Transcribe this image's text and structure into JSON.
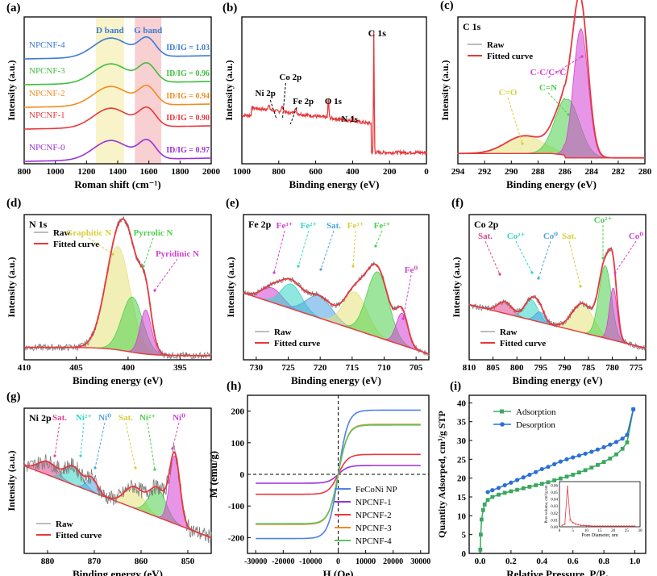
{
  "colors": {
    "raw": "#7a7a7a",
    "fit": "#e8383d",
    "yellow": "#e8e27a",
    "green": "#4ccf4c",
    "cyan": "#33d6c6",
    "blue": "#4ea3e0",
    "magenta": "#d440d4",
    "pink": "#e0458f",
    "orange": "#f28c1f",
    "purple": "#9b30d9",
    "navy": "#3a7bd5"
  },
  "chart_data": [
    {
      "panel_label": "(a)",
      "type": "line",
      "title": "",
      "xlabel": "Roman shift (cm⁻¹)",
      "ylabel": "Intensity (a.u.)",
      "xlim": [
        800,
        2000
      ],
      "xticks": [
        "800",
        "1000",
        "1200",
        "1400",
        "1600",
        "1800",
        "2000"
      ],
      "band_labels": [
        "D band",
        "G band"
      ],
      "band_ranges": [
        [
          1260,
          1440
        ],
        [
          1510,
          1680
        ]
      ],
      "series": [
        {
          "name": "NPCNF-4",
          "ratio": "ID/IG = 1.03",
          "color": "#3a7bd5",
          "d_peak": 1355,
          "g_peak": 1590
        },
        {
          "name": "NPCNF-3",
          "ratio": "ID/IG = 0.96",
          "color": "#3fbf3f",
          "d_peak": 1355,
          "g_peak": 1590
        },
        {
          "name": "NPCNF-2",
          "ratio": "ID/IG = 0.94",
          "color": "#f28c1f",
          "d_peak": 1355,
          "g_peak": 1590
        },
        {
          "name": "NPCNF-1",
          "ratio": "ID/IG = 0.90",
          "color": "#e8383d",
          "d_peak": 1355,
          "g_peak": 1590
        },
        {
          "name": "NPCNF-0",
          "ratio": "ID/IG = 0.97",
          "color": "#9b30d9",
          "d_peak": 1355,
          "g_peak": 1590
        }
      ]
    },
    {
      "panel_label": "(b)",
      "type": "line",
      "xlabel": "Binding energy (eV)",
      "ylabel": "Intensity (a.u.)",
      "xlim": [
        1000,
        0
      ],
      "xticks": [
        "1000",
        "800",
        "600",
        "400",
        "200",
        "0"
      ],
      "annotations": [
        "C 1s",
        "O 1s",
        "N 1s",
        "Co 2p",
        "Fe 2p",
        "Ni 2p"
      ],
      "peaks_eV": {
        "C 1s": 285,
        "O 1s": 531,
        "N 1s": 399,
        "Co 2p": 780,
        "Fe 2p": 711,
        "Ni 2p": 855
      }
    },
    {
      "panel_label": "(c)",
      "type": "line",
      "title": "C 1s",
      "xlabel": "Binding energy (eV)",
      "ylabel": "Intensity (a.u.)",
      "xlim": [
        294,
        280
      ],
      "xticks": [
        "294",
        "292",
        "290",
        "288",
        "286",
        "284",
        "282",
        "280"
      ],
      "legend": [
        "Raw",
        "Fitted curve"
      ],
      "components": [
        {
          "name": "C=O",
          "center": 289.0,
          "height": 0.12,
          "width": 1.4,
          "color": "#e8e27a"
        },
        {
          "name": "C=N",
          "center": 285.8,
          "height": 0.4,
          "width": 0.9,
          "color": "#4ccf4c"
        },
        {
          "name": "C-C/C=C",
          "center": 284.8,
          "height": 0.88,
          "width": 0.55,
          "color": "#d440d4"
        }
      ]
    },
    {
      "panel_label": "(d)",
      "type": "line",
      "title": "N 1s",
      "xlabel": "Binding energy (eV)",
      "ylabel": "Intensity (a.u.)",
      "xlim": [
        410,
        392
      ],
      "xticks": [
        "410",
        "405",
        "400",
        "395"
      ],
      "legend": [
        "Raw",
        "Fitted curve"
      ],
      "components": [
        {
          "name": "Graphitic N",
          "center": 401.0,
          "height": 0.75,
          "width": 1.2,
          "color": "#e8e27a"
        },
        {
          "name": "Pyrrolic N",
          "center": 399.6,
          "height": 0.4,
          "width": 1.0,
          "color": "#4ccf4c"
        },
        {
          "name": "Pyridinic N",
          "center": 398.3,
          "height": 0.32,
          "width": 0.55,
          "color": "#d440d4"
        }
      ]
    },
    {
      "panel_label": "(e)",
      "type": "line",
      "title": "Fe 2p",
      "xlabel": "Binding energy (eV)",
      "ylabel": "Intensity (a.u.)",
      "xlim": [
        732,
        703
      ],
      "xticks": [
        "730",
        "725",
        "720",
        "715",
        "710",
        "705"
      ],
      "legend": [
        "Raw",
        "Fitted curve"
      ],
      "peak_labels": [
        "Fe³⁺",
        "Fe²⁺",
        "Sat.",
        "Fe³⁺",
        "Fe²⁺",
        "Fe⁰"
      ],
      "components": [
        {
          "name": "Fe3+ (2p1/2)",
          "center": 727.5,
          "height": 0.1,
          "width": 1.6,
          "color": "#d440d4"
        },
        {
          "name": "Fe2+ (2p1/2)",
          "center": 724.5,
          "height": 0.17,
          "width": 1.6,
          "color": "#33d6c6"
        },
        {
          "name": "Sat.",
          "center": 720.2,
          "height": 0.15,
          "width": 2.0,
          "color": "#4ea3e0"
        },
        {
          "name": "Fe3+ (2p3/2)",
          "center": 714.5,
          "height": 0.26,
          "width": 1.8,
          "color": "#e8e27a"
        },
        {
          "name": "Fe2+ (2p3/2)",
          "center": 711.0,
          "height": 0.45,
          "width": 1.7,
          "color": "#4ccf4c"
        },
        {
          "name": "Fe0",
          "center": 707.2,
          "height": 0.22,
          "width": 0.9,
          "color": "#d440d4"
        }
      ]
    },
    {
      "panel_label": "(f)",
      "type": "line",
      "title": "Co 2p",
      "xlabel": "Binding energy (eV)",
      "ylabel": "Intensity (a.u.)",
      "xlim": [
        810,
        773
      ],
      "xticks": [
        "810",
        "805",
        "800",
        "795",
        "790",
        "785",
        "780",
        "775"
      ],
      "legend": [
        "Raw",
        "Fitted curve"
      ],
      "peak_labels": [
        "Sat.",
        "Co²⁺",
        "Co⁰",
        "Sat.",
        "Co²⁺",
        "Co⁰"
      ],
      "components": [
        {
          "name": "Sat. (2p1/2)",
          "center": 802.5,
          "height": 0.08,
          "width": 1.5,
          "color": "#e0458f"
        },
        {
          "name": "Co2+ (2p1/2)",
          "center": 797.0,
          "height": 0.14,
          "width": 1.4,
          "color": "#33d6c6"
        },
        {
          "name": "Co0 (2p1/2)",
          "center": 795.2,
          "height": 0.07,
          "width": 1.0,
          "color": "#4ea3e0"
        },
        {
          "name": "Sat. (2p3/2)",
          "center": 786.2,
          "height": 0.2,
          "width": 2.2,
          "color": "#e8e27a"
        },
        {
          "name": "Co2+ (2p3/2)",
          "center": 781.5,
          "height": 0.5,
          "width": 1.3,
          "color": "#4ccf4c"
        },
        {
          "name": "Co0 (2p3/2)",
          "center": 779.8,
          "height": 0.36,
          "width": 0.8,
          "color": "#d440d4"
        }
      ]
    },
    {
      "panel_label": "(g)",
      "type": "line",
      "title": "Ni 2p",
      "xlabel": "Binding energy (eV)",
      "ylabel": "Intensity (a.u.)",
      "xlim": [
        885,
        845
      ],
      "xticks": [
        "880",
        "870",
        "860",
        "850"
      ],
      "legend": [
        "Raw",
        "Fitted curve"
      ],
      "peak_labels": [
        "Sat.",
        "Ni²⁺",
        "Ni⁰",
        "Sat.",
        "Ni²⁺",
        "Ni⁰"
      ],
      "components": [
        {
          "name": "Sat. (2p1/2)",
          "center": 880.0,
          "height": 0.1,
          "width": 2.0,
          "color": "#e0458f"
        },
        {
          "name": "Ni2+ (2p1/2)",
          "center": 874.5,
          "height": 0.14,
          "width": 1.8,
          "color": "#33d6c6"
        },
        {
          "name": "Ni0 (2p1/2)",
          "center": 870.5,
          "height": 0.1,
          "width": 1.2,
          "color": "#4ea3e0"
        },
        {
          "name": "Sat. (2p3/2)",
          "center": 861.5,
          "height": 0.16,
          "width": 2.0,
          "color": "#e8e27a"
        },
        {
          "name": "Ni2+ (2p3/2)",
          "center": 856.5,
          "height": 0.22,
          "width": 1.8,
          "color": "#4ccf4c"
        },
        {
          "name": "Ni0 (2p3/2)",
          "center": 852.8,
          "height": 0.52,
          "width": 1.1,
          "color": "#d440d4"
        }
      ]
    },
    {
      "panel_label": "(h)",
      "type": "line",
      "xlabel": "H (Oe)",
      "ylabel": "M (emu/g)",
      "xlim": [
        -33000,
        33000
      ],
      "ylim": [
        -250,
        250
      ],
      "xticks": [
        "-30000",
        "-20000",
        "-10000",
        "0",
        "10000",
        "20000",
        "30000"
      ],
      "yticks": [
        "-200",
        "-100",
        "0",
        "100",
        "200"
      ],
      "series": [
        {
          "name": "FeCoNi NP",
          "color": "#4f81e8",
          "Ms": 203
        },
        {
          "name": "NPCNF-1",
          "color": "#9b30d9",
          "Ms": 28
        },
        {
          "name": "NPCNF-2",
          "color": "#e8383d",
          "Ms": 63
        },
        {
          "name": "NPCNF-3",
          "color": "#f28c1f",
          "Ms": 158
        },
        {
          "name": "NPCNF-4",
          "color": "#5fc35f",
          "Ms": 156
        }
      ]
    },
    {
      "panel_label": "(i)",
      "type": "scatter",
      "xlabel": "Relative Pressure, P/P₀",
      "ylabel": "Quantity Adsorped, cm³/g STP",
      "xlim": [
        -0.07,
        1.07
      ],
      "ylim": [
        0,
        42
      ],
      "xticks": [
        "0.0",
        "0.2",
        "0.4",
        "0.6",
        "0.8",
        "1.0"
      ],
      "yticks": [
        "0",
        "5",
        "10",
        "15",
        "20",
        "25",
        "30",
        "35",
        "40"
      ],
      "series": [
        {
          "name": "Adsorption",
          "color": "#3aa85f",
          "x": [
            0.002,
            0.005,
            0.01,
            0.02,
            0.03,
            0.05,
            0.08,
            0.12,
            0.16,
            0.2,
            0.24,
            0.28,
            0.32,
            0.36,
            0.4,
            0.44,
            0.48,
            0.52,
            0.56,
            0.6,
            0.64,
            0.68,
            0.72,
            0.76,
            0.8,
            0.84,
            0.88,
            0.92,
            0.95,
            0.99
          ],
          "y": [
            1,
            5,
            9,
            11.5,
            13,
            14.2,
            15,
            15.6,
            16.1,
            16.5,
            16.9,
            17.3,
            17.7,
            18.1,
            18.5,
            18.9,
            19.4,
            19.9,
            20.4,
            20.9,
            21.5,
            22.1,
            22.8,
            23.5,
            24.3,
            25.2,
            26.3,
            27.8,
            29.5,
            38.3
          ]
        },
        {
          "name": "Desorption",
          "color": "#2b6fd6",
          "x": [
            0.99,
            0.95,
            0.92,
            0.88,
            0.84,
            0.8,
            0.76,
            0.72,
            0.68,
            0.64,
            0.6,
            0.56,
            0.52,
            0.48,
            0.44,
            0.4,
            0.36,
            0.32,
            0.28,
            0.24,
            0.2,
            0.16,
            0.12,
            0.08,
            0.05
          ],
          "y": [
            38.3,
            31.5,
            30.5,
            29.6,
            28.9,
            28.2,
            27.6,
            27,
            26.5,
            26,
            25.5,
            25,
            24.4,
            23.7,
            23,
            22.4,
            21.6,
            20.9,
            20.2,
            19.5,
            18.8,
            18.1,
            17.4,
            16.8,
            16.3
          ]
        }
      ],
      "inset": {
        "xlabel": "Pore Diameter, nm",
        "ylabel": "Pore volume, cm³/g nm",
        "xticks": [
          "0",
          "5",
          "10",
          "15",
          "20",
          "25",
          "30"
        ],
        "yticks": [
          "0.00",
          "0.01",
          "0.02",
          "0.03",
          "0.04",
          "0.05",
          "0.06"
        ]
      }
    }
  ]
}
